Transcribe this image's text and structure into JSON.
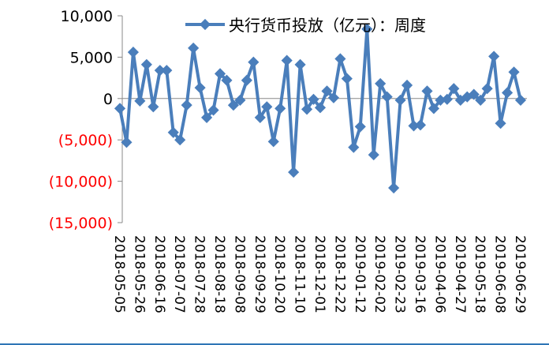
{
  "chart_data": {
    "type": "line",
    "title": "",
    "xlabel": "",
    "ylabel": "",
    "ylim": [
      -15000,
      10000
    ],
    "y_ticks": [
      10000,
      5000,
      0,
      -5000,
      -10000,
      -15000
    ],
    "y_tick_labels": [
      "10,000",
      "5,000",
      "0",
      "(5,000)",
      "(10,000)",
      "(15,000)"
    ],
    "y_tick_colors": [
      "#000000",
      "#000000",
      "#000000",
      "#ff0000",
      "#ff0000",
      "#ff0000"
    ],
    "legend_position": "top",
    "grid": false,
    "series_color": "#4a7ebb",
    "x_tick_labels": [
      "2018-05-05",
      "2018-05-26",
      "2018-06-16",
      "2018-07-07",
      "2018-07-28",
      "2018-08-18",
      "2018-09-08",
      "2018-09-29",
      "2018-10-20",
      "2018-11-10",
      "2018-12-01",
      "2018-12-22",
      "2019-01-12",
      "2019-02-02",
      "2019-02-23",
      "2019-03-16",
      "2019-04-06",
      "2019-04-27",
      "2019-05-18",
      "2019-06-08",
      "2019-06-29"
    ],
    "series": [
      {
        "name": "央行货币投放（亿元）：周度",
        "values": [
          -1200,
          -5300,
          5600,
          -300,
          4100,
          -1000,
          3400,
          3400,
          -4100,
          -5000,
          -800,
          6100,
          1300,
          -2300,
          -1400,
          3000,
          2200,
          -800,
          -200,
          2200,
          4400,
          -2300,
          -1000,
          -5200,
          -1200,
          4600,
          -8900,
          4100,
          -1300,
          -100,
          -1100,
          900,
          100,
          4800,
          2400,
          -5900,
          -3400,
          8400,
          -6800,
          1800,
          200,
          -10800,
          -200,
          1600,
          -3300,
          -3200,
          900,
          -1200,
          -200,
          -100,
          1200,
          -200,
          200,
          500,
          -200,
          1200,
          5100,
          -3000,
          700,
          3200,
          -200
        ]
      }
    ]
  }
}
